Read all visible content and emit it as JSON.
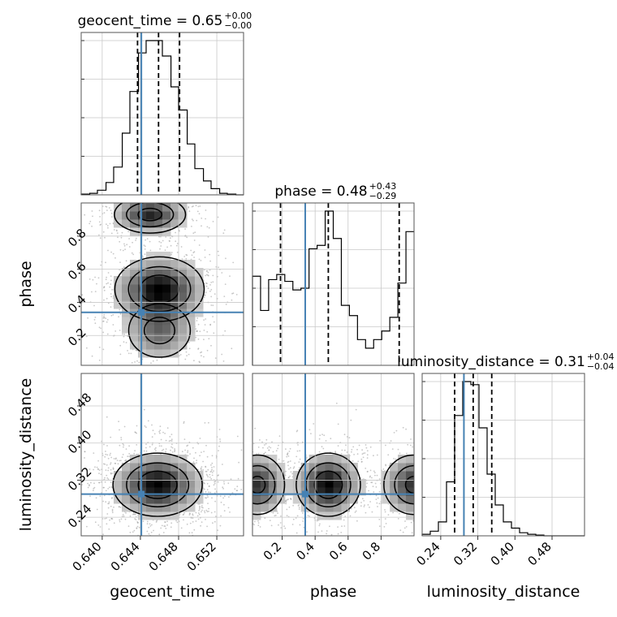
{
  "chart_data": {
    "type": "corner",
    "parameters": [
      "geocent_time",
      "phase",
      "luminosity_distance"
    ],
    "titles": [
      {
        "param": "geocent_time",
        "label": "geocent_time = 0.65",
        "plus": "+0.00",
        "minus": "−0.00"
      },
      {
        "param": "phase",
        "label": "phase = 0.48",
        "plus": "+0.43",
        "minus": "−0.29"
      },
      {
        "param": "luminosity_distance",
        "label": "luminosity_distance = 0.31",
        "plus": "+0.04",
        "minus": "−0.04"
      }
    ],
    "axis_labels": {
      "x": [
        "geocent_time",
        "phase",
        "luminosity_distance"
      ],
      "y": [
        "phase",
        "luminosity_distance"
      ]
    },
    "tick_labels": {
      "geocent_time": [
        "0.640",
        "0.644",
        "0.648",
        "0.652"
      ],
      "phase": [
        "0.2",
        "0.4",
        "0.6",
        "0.8"
      ],
      "luminosity_distance": [
        "0.24",
        "0.32",
        "0.40",
        "0.48"
      ]
    },
    "ticks": {
      "geocent_time": [
        0.64,
        0.644,
        0.648,
        0.652
      ],
      "phase": [
        0.2,
        0.4,
        0.6,
        0.8
      ],
      "luminosity_distance": [
        0.24,
        0.32,
        0.4,
        0.48
      ]
    },
    "ranges": {
      "geocent_time": [
        0.6378,
        0.6548
      ],
      "phase": [
        0.02,
        1.0
      ],
      "luminosity_distance": [
        0.2,
        0.55
      ]
    },
    "truths": {
      "geocent_time": 0.6441,
      "phase": 0.34,
      "luminosity_distance": 0.29
    },
    "quantiles": {
      "geocent_time": [
        0.6437,
        0.6459,
        0.6481
      ],
      "phase": [
        0.19,
        0.48,
        0.91
      ],
      "luminosity_distance": [
        0.27,
        0.31,
        0.35
      ]
    },
    "histograms": {
      "geocent_time": {
        "edges": [
          0.6378,
          0.6387,
          0.6395,
          0.6404,
          0.6412,
          0.6421,
          0.6429,
          0.6438,
          0.6446,
          0.6455,
          0.6463,
          0.6472,
          0.648,
          0.6489,
          0.6497,
          0.6506,
          0.6514,
          0.6523,
          0.6531,
          0.654,
          0.6548
        ],
        "counts": [
          0.5,
          1,
          3,
          8,
          18,
          40,
          67,
          92,
          100,
          100,
          90,
          70,
          55,
          33,
          17,
          9,
          4,
          1,
          0.5,
          0
        ]
      },
      "phase": {
        "edges": [
          0.02,
          0.069,
          0.118,
          0.167,
          0.216,
          0.265,
          0.314,
          0.363,
          0.412,
          0.461,
          0.51,
          0.559,
          0.608,
          0.657,
          0.706,
          0.755,
          0.804,
          0.853,
          0.902,
          0.951,
          1.0
        ],
        "counts": [
          52,
          32,
          50,
          53,
          49,
          44,
          45,
          68,
          70,
          90,
          74,
          35,
          29,
          15,
          10,
          15,
          20,
          28,
          48,
          78
        ]
      },
      "luminosity_distance": {
        "edges": [
          0.2,
          0.2175,
          0.235,
          0.2525,
          0.27,
          0.2875,
          0.305,
          0.3225,
          0.34,
          0.3575,
          0.375,
          0.3925,
          0.41,
          0.4275,
          0.445,
          0.4625,
          0.48,
          0.4975,
          0.515,
          0.5325,
          0.55
        ],
        "counts": [
          1,
          3,
          9,
          35,
          78,
          100,
          98,
          70,
          40,
          20,
          9,
          5,
          2,
          1,
          0.5,
          0,
          0,
          0,
          0,
          0
        ]
      }
    },
    "density_modes": {
      "phase_vs_geocent_time": [
        {
          "x": 0.646,
          "y": 0.48,
          "sx": 0.0024,
          "sy": 0.1,
          "w": 1.0
        },
        {
          "x": 0.645,
          "y": 0.93,
          "sx": 0.002,
          "sy": 0.06,
          "w": 0.85
        },
        {
          "x": 0.646,
          "y": 0.23,
          "sx": 0.002,
          "sy": 0.1,
          "w": 0.55
        }
      ],
      "luminosity_distance_vs_geocent_time": [
        {
          "x": 0.6458,
          "y": 0.31,
          "sx": 0.0024,
          "sy": 0.035,
          "w": 1.0
        }
      ],
      "luminosity_distance_vs_phase": [
        {
          "x": 0.05,
          "y": 0.31,
          "sx": 0.09,
          "sy": 0.035,
          "w": 0.8
        },
        {
          "x": 0.48,
          "y": 0.31,
          "sx": 0.1,
          "sy": 0.035,
          "w": 1.0
        },
        {
          "x": 1.0,
          "y": 0.31,
          "sx": 0.1,
          "sy": 0.035,
          "w": 0.8
        }
      ]
    },
    "colors": {
      "truth": "#4682b4",
      "hist": "#000000",
      "quantile": "#000000",
      "grid": "#c8c8c8",
      "points": "#9a9a9a"
    },
    "grid": true
  }
}
